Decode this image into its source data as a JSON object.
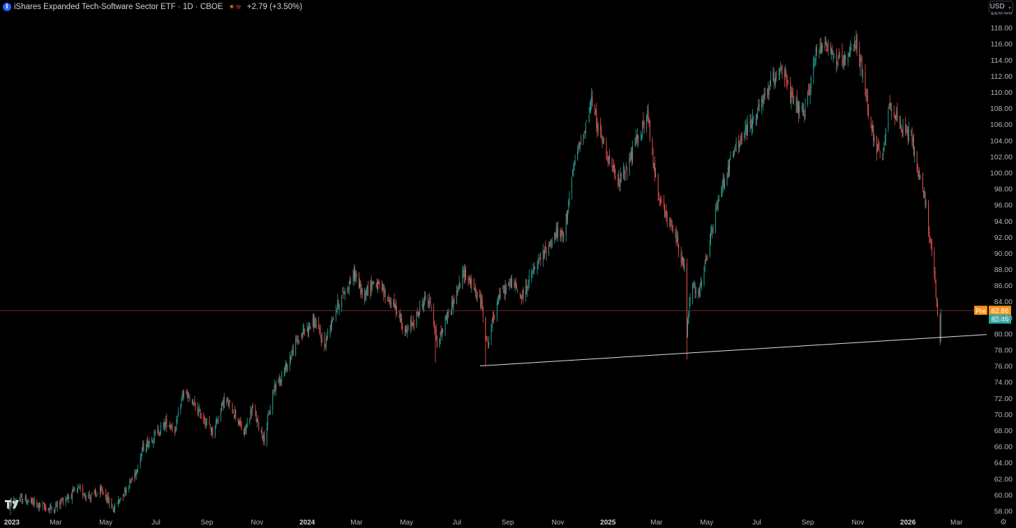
{
  "header": {
    "symbol_title": "iShares Expanded Tech-Software Sector ETF · 1D · CBOE",
    "change": "+2.79 (+3.50%)",
    "icons": [
      "info-icon",
      "sun-icon",
      "wave-icon"
    ]
  },
  "currency_label": "USD",
  "colors": {
    "up": "#26a69a",
    "down": "#ef5350",
    "pre_label": "#f7931a",
    "last_label": "#26a69a",
    "trendline": "#e0e3eb",
    "axis_text": "#b2b5be"
  },
  "chart_data": {
    "type": "candlestick",
    "series_name": "",
    "y_axis": {
      "min": 57,
      "max": 121,
      "ticks": [
        "58.00",
        "60.00",
        "62.00",
        "64.00",
        "66.00",
        "68.00",
        "70.00",
        "72.00",
        "74.00",
        "76.00",
        "78.00",
        "80.00",
        "82.00",
        "84.00",
        "86.00",
        "88.00",
        "90.00",
        "92.00",
        "94.00",
        "96.00",
        "98.00",
        "100.00",
        "102.00",
        "104.00",
        "106.00",
        "108.00",
        "110.00",
        "112.00",
        "114.00",
        "116.00",
        "118.00",
        "120.00"
      ]
    },
    "x_axis": {
      "start": "2023-01-01",
      "end": "2026-03-31",
      "labels": [
        {
          "date": "2023-01-01",
          "text": "2023",
          "bold": true
        },
        {
          "date": "2023-03-01",
          "text": "Mar",
          "bold": false
        },
        {
          "date": "2023-05-01",
          "text": "May",
          "bold": false
        },
        {
          "date": "2023-07-01",
          "text": "Jul",
          "bold": false
        },
        {
          "date": "2023-09-01",
          "text": "Sep",
          "bold": false
        },
        {
          "date": "2023-11-01",
          "text": "Nov",
          "bold": false
        },
        {
          "date": "2024-01-01",
          "text": "2024",
          "bold": true
        },
        {
          "date": "2024-03-01",
          "text": "Mar",
          "bold": false
        },
        {
          "date": "2024-05-01",
          "text": "May",
          "bold": false
        },
        {
          "date": "2024-07-01",
          "text": "Jul",
          "bold": false
        },
        {
          "date": "2024-09-01",
          "text": "Sep",
          "bold": false
        },
        {
          "date": "2024-11-01",
          "text": "Nov",
          "bold": false
        },
        {
          "date": "2025-01-01",
          "text": "2025",
          "bold": true
        },
        {
          "date": "2025-03-01",
          "text": "Mar",
          "bold": false
        },
        {
          "date": "2025-05-01",
          "text": "May",
          "bold": false
        },
        {
          "date": "2025-07-01",
          "text": "Jul",
          "bold": false
        },
        {
          "date": "2025-09-01",
          "text": "Sep",
          "bold": false
        },
        {
          "date": "2025-11-01",
          "text": "Nov",
          "bold": false
        },
        {
          "date": "2026-01-01",
          "text": "2026",
          "bold": true
        },
        {
          "date": "2026-03-01",
          "text": "Mar",
          "bold": false
        }
      ]
    },
    "price_path": [
      [
        "2023-01-03",
        58.8
      ],
      [
        "2023-01-20",
        59.5
      ],
      [
        "2023-02-10",
        58.6
      ],
      [
        "2023-02-25",
        58.2
      ],
      [
        "2023-03-10",
        59.4
      ],
      [
        "2023-03-28",
        60.6
      ],
      [
        "2023-04-12",
        59.8
      ],
      [
        "2023-04-28",
        60.4
      ],
      [
        "2023-05-10",
        58.2
      ],
      [
        "2023-05-22",
        60.2
      ],
      [
        "2023-06-05",
        62.5
      ],
      [
        "2023-06-15",
        65.8
      ],
      [
        "2023-06-30",
        67.5
      ],
      [
        "2023-07-14",
        69.0
      ],
      [
        "2023-07-25",
        68.2
      ],
      [
        "2023-08-03",
        72.8
      ],
      [
        "2023-08-15",
        71.2
      ],
      [
        "2023-08-28",
        69.5
      ],
      [
        "2023-09-08",
        67.8
      ],
      [
        "2023-09-22",
        71.8
      ],
      [
        "2023-10-05",
        70.2
      ],
      [
        "2023-10-16",
        67.5
      ],
      [
        "2023-10-26",
        70.8
      ],
      [
        "2023-11-03",
        68.5
      ],
      [
        "2023-11-10",
        67.0
      ],
      [
        "2023-11-22",
        73.5
      ],
      [
        "2023-12-05",
        75.5
      ],
      [
        "2023-12-18",
        78.8
      ],
      [
        "2023-12-29",
        80.5
      ],
      [
        "2024-01-10",
        81.5
      ],
      [
        "2024-01-22",
        78.5
      ],
      [
        "2024-02-02",
        82.5
      ],
      [
        "2024-02-14",
        85.0
      ],
      [
        "2024-02-28",
        87.5
      ],
      [
        "2024-03-08",
        84.8
      ],
      [
        "2024-03-22",
        86.5
      ],
      [
        "2024-04-05",
        84.8
      ],
      [
        "2024-04-19",
        83.0
      ],
      [
        "2024-04-30",
        80.0
      ],
      [
        "2024-05-12",
        82.0
      ],
      [
        "2024-05-24",
        84.5
      ],
      [
        "2024-06-01",
        83.5
      ],
      [
        "2024-06-07",
        78.5
      ],
      [
        "2024-06-20",
        82.5
      ],
      [
        "2024-07-01",
        85.0
      ],
      [
        "2024-07-10",
        87.8
      ],
      [
        "2024-07-22",
        85.5
      ],
      [
        "2024-08-01",
        83.5
      ],
      [
        "2024-08-07",
        78.5
      ],
      [
        "2024-08-20",
        84.5
      ],
      [
        "2024-09-06",
        86.5
      ],
      [
        "2024-09-18",
        84.5
      ],
      [
        "2024-10-01",
        87.5
      ],
      [
        "2024-10-15",
        90.0
      ],
      [
        "2024-10-30",
        92.5
      ],
      [
        "2024-11-08",
        92.0
      ],
      [
        "2024-11-14",
        96.5
      ],
      [
        "2024-11-22",
        101.5
      ],
      [
        "2024-12-05",
        106.0
      ],
      [
        "2024-12-12",
        109.0
      ],
      [
        "2024-12-20",
        105.5
      ],
      [
        "2024-12-31",
        102.5
      ],
      [
        "2025-01-12",
        98.5
      ],
      [
        "2025-01-25",
        101.0
      ],
      [
        "2025-02-07",
        104.5
      ],
      [
        "2025-02-18",
        107.0
      ],
      [
        "2025-02-28",
        99.0
      ],
      [
        "2025-03-12",
        94.5
      ],
      [
        "2025-03-25",
        92.0
      ],
      [
        "2025-04-04",
        88.0
      ],
      [
        "2025-04-07",
        80.0
      ],
      [
        "2025-04-12",
        86.0
      ],
      [
        "2025-04-22",
        84.8
      ],
      [
        "2025-05-05",
        91.5
      ],
      [
        "2025-05-20",
        98.5
      ],
      [
        "2025-06-05",
        103.0
      ],
      [
        "2025-06-20",
        105.5
      ],
      [
        "2025-07-05",
        108.0
      ],
      [
        "2025-07-18",
        111.0
      ],
      [
        "2025-07-31",
        113.5
      ],
      [
        "2025-08-12",
        109.0
      ],
      [
        "2025-08-28",
        107.0
      ],
      [
        "2025-09-10",
        114.5
      ],
      [
        "2025-09-22",
        116.5
      ],
      [
        "2025-10-05",
        114.0
      ],
      [
        "2025-10-18",
        113.5
      ],
      [
        "2025-10-30",
        116.5
      ],
      [
        "2025-11-10",
        110.0
      ],
      [
        "2025-11-22",
        103.5
      ],
      [
        "2025-12-01",
        101.5
      ],
      [
        "2025-12-10",
        109.0
      ],
      [
        "2025-12-22",
        105.5
      ],
      [
        "2026-01-05",
        104.5
      ],
      [
        "2026-01-15",
        99.5
      ],
      [
        "2026-01-22",
        96.5
      ],
      [
        "2026-01-28",
        92.0
      ],
      [
        "2026-02-03",
        86.0
      ],
      [
        "2026-02-06",
        82.0
      ],
      [
        "2026-02-09",
        79.5
      ],
      [
        "2026-02-10",
        82.5
      ]
    ],
    "trendline": {
      "start": [
        "2024-08-05",
        76.0
      ],
      "end": [
        "2026-03-31",
        79.9
      ]
    },
    "price_lines": {
      "pre": {
        "label": "Pre",
        "value": "82.86"
      },
      "last": {
        "value": "82.46"
      }
    }
  }
}
